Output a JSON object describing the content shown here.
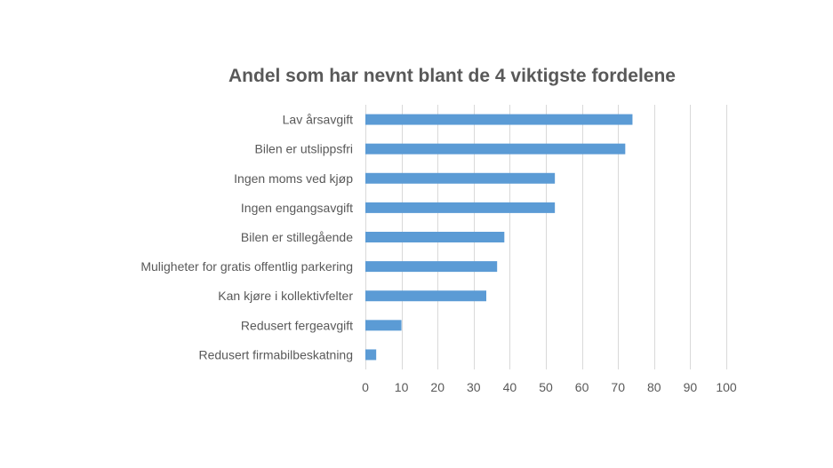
{
  "chart_data": {
    "type": "bar",
    "orientation": "horizontal",
    "title": "Andel som har nevnt blant de 4 viktigste fordelene",
    "xlabel": "",
    "ylabel": "",
    "categories": [
      "Lav årsavgift",
      "Bilen er utslippsfri",
      "Ingen moms ved kjøp",
      "Ingen engangsavgift",
      "Bilen er stillegående",
      "Muligheter for gratis offentlig parkering",
      "Kan kjøre i kollektivfelter",
      "Redusert fergeavgift",
      "Redusert firmabilbeskatning"
    ],
    "values": [
      74,
      72,
      52.5,
      52.5,
      38.5,
      36.5,
      33.5,
      10,
      3
    ],
    "xlim": [
      0,
      100
    ],
    "xticks": [
      0,
      10,
      20,
      30,
      40,
      50,
      60,
      70,
      80,
      90,
      100
    ],
    "grid": "vertical",
    "legend": "none",
    "bar_color": "#5b9bd5"
  }
}
